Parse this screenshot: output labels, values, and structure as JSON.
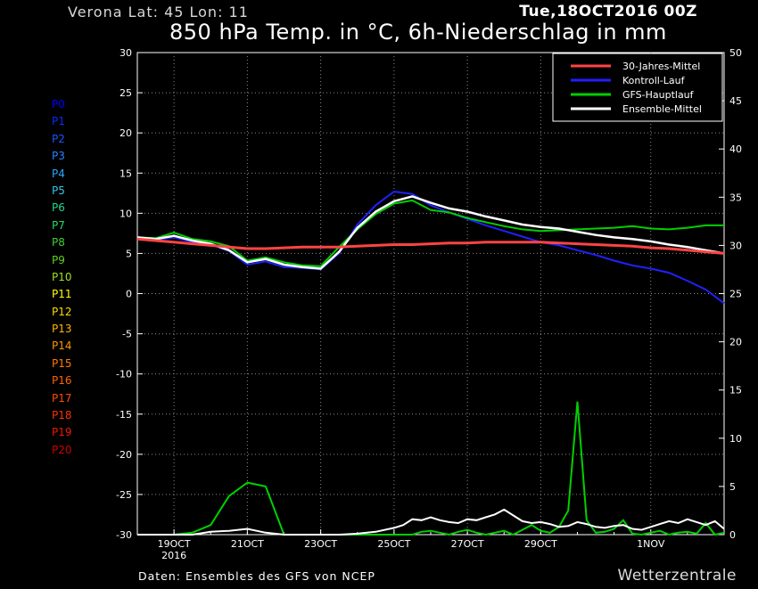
{
  "header": {
    "location": "Verona   Lat: 45  Lon: 11",
    "date": "Tue,18OCT2016 00Z",
    "title": "850 hPa Temp. in °C, 6h-Niederschlag in mm"
  },
  "footer": {
    "credit": "Daten: Ensembles des GFS von NCEP",
    "brand": "Wetterzentrale"
  },
  "colors": {
    "background": "#000000",
    "climate": "#ff4444",
    "control": "#2020ff",
    "gfs": "#00d000",
    "ensemble_mean": "#ffffff",
    "members": [
      "#0000ff",
      "#0a2aff",
      "#1a55ff",
      "#2a80ff",
      "#2aa8ff",
      "#33c8e8",
      "#20d890",
      "#2ad860",
      "#40d030",
      "#60d020",
      "#a0e020",
      "#ffff00",
      "#ffd800",
      "#ffb400",
      "#ff9400",
      "#ff7a00",
      "#ff6200",
      "#ff4c00",
      "#ff3000",
      "#ee1800",
      "#cc0000"
    ]
  },
  "members": [
    "P0",
    "P1",
    "P2",
    "P3",
    "P4",
    "P5",
    "P6",
    "P7",
    "P8",
    "P9",
    "P10",
    "P11",
    "P12",
    "P13",
    "P14",
    "P15",
    "P16",
    "P17",
    "P18",
    "P19",
    "P20"
  ],
  "chart_data": {
    "type": "line",
    "x_axis": {
      "ticks": [
        {
          "label": "19OCT",
          "sub": "2016",
          "day": 19
        },
        {
          "label": "21OCT",
          "sub": "",
          "day": 21
        },
        {
          "label": "23OCT",
          "sub": "",
          "day": 23
        },
        {
          "label": "25OCT",
          "sub": "",
          "day": 25
        },
        {
          "label": "27OCT",
          "sub": "",
          "day": 27
        },
        {
          "label": "29OCT",
          "sub": "",
          "day": 29
        },
        {
          "label": "1NOV",
          "sub": "",
          "day": 32
        }
      ],
      "range_days": [
        18,
        34
      ]
    },
    "y_left": {
      "label": "850 hPa Temp. (°C)",
      "range": [
        -30,
        30
      ],
      "ticks": [
        30,
        25,
        20,
        15,
        10,
        5,
        0,
        -5,
        -10,
        -15,
        -20,
        -25,
        -30
      ]
    },
    "y_right": {
      "label": "6h-Niederschlag (mm)",
      "range": [
        0,
        50
      ],
      "ticks": [
        50,
        45,
        40,
        35,
        30,
        25,
        20,
        15,
        10,
        5,
        0
      ]
    },
    "grid": true,
    "legend": {
      "placement": "top-right",
      "entries": [
        {
          "name": "30-Jahres-Mittel",
          "color": "#ff4444"
        },
        {
          "name": "Kontroll-Lauf",
          "color": "#2020ff"
        },
        {
          "name": "GFS-Hauptlauf",
          "color": "#00d000"
        },
        {
          "name": "Ensemble-Mittel",
          "color": "#ffffff"
        }
      ]
    },
    "temperature": {
      "day": [
        18,
        18.5,
        19,
        19.5,
        20,
        20.5,
        21,
        21.5,
        22,
        22.5,
        23,
        23.5,
        24,
        24.5,
        25,
        25.5,
        26,
        26.5,
        27,
        27.5,
        28,
        28.5,
        29,
        29.5,
        30,
        30.5,
        31,
        31.5,
        32,
        32.5,
        33,
        33.5,
        34
      ],
      "climate": [
        6.8,
        6.6,
        6.4,
        6.2,
        6.0,
        5.8,
        5.6,
        5.6,
        5.7,
        5.8,
        5.8,
        5.8,
        5.9,
        6.0,
        6.1,
        6.1,
        6.2,
        6.3,
        6.3,
        6.4,
        6.4,
        6.4,
        6.4,
        6.3,
        6.2,
        6.1,
        6.0,
        5.9,
        5.7,
        5.6,
        5.4,
        5.2,
        5.0
      ],
      "ensemble_mean": [
        7.0,
        6.8,
        7.2,
        6.6,
        6.2,
        5.4,
        3.9,
        4.3,
        3.6,
        3.3,
        3.1,
        5.2,
        8.2,
        10.2,
        11.5,
        12.1,
        11.3,
        10.6,
        10.2,
        9.6,
        9.1,
        8.6,
        8.3,
        8.1,
        7.7,
        7.3,
        7.0,
        6.8,
        6.5,
        6.1,
        5.8,
        5.4,
        5.0
      ],
      "control": [
        7.0,
        6.7,
        7.0,
        6.4,
        6.1,
        5.3,
        3.6,
        4.0,
        3.3,
        3.2,
        3.0,
        5.0,
        8.6,
        11.0,
        12.7,
        12.4,
        11.0,
        10.1,
        9.3,
        8.5,
        7.8,
        7.1,
        6.4,
        6.0,
        5.4,
        4.8,
        4.1,
        3.5,
        3.1,
        2.6,
        1.6,
        0.5,
        -1.2
      ],
      "gfs": [
        7.0,
        6.9,
        7.6,
        6.8,
        6.5,
        5.9,
        4.1,
        4.5,
        3.9,
        3.5,
        3.4,
        5.8,
        8.0,
        9.9,
        11.2,
        11.6,
        10.4,
        10.1,
        9.4,
        8.9,
        8.4,
        8.0,
        7.8,
        7.9,
        8.0,
        8.1,
        8.2,
        8.4,
        8.1,
        8.0,
        8.2,
        8.5,
        8.5
      ]
    },
    "precipitation_mm": {
      "day": [
        18,
        19,
        19.5,
        20,
        20.5,
        21,
        21.5,
        22,
        23,
        23.5,
        24,
        24.5,
        25,
        25.25,
        25.5,
        25.75,
        26,
        26.25,
        26.5,
        26.75,
        27,
        27.25,
        27.5,
        27.75,
        28,
        28.25,
        28.5,
        28.75,
        29,
        29.25,
        29.5,
        29.75,
        30,
        30.25,
        30.5,
        30.75,
        31,
        31.25,
        31.5,
        31.75,
        32,
        32.25,
        32.5,
        32.75,
        33,
        33.25,
        33.5,
        33.75,
        34
      ],
      "gfs": [
        0,
        0,
        0.2,
        1.0,
        4.0,
        5.4,
        5.0,
        0,
        0,
        0,
        0,
        0,
        0,
        0,
        0,
        0.3,
        0.4,
        0.2,
        0,
        0.3,
        0.5,
        0.2,
        0,
        0.2,
        0.4,
        0,
        0.5,
        1.0,
        0.4,
        0.2,
        0.8,
        2.5,
        13.8,
        1.5,
        0.2,
        0.3,
        0.6,
        1.5,
        0.1,
        0,
        0.2,
        0.4,
        0,
        0.2,
        0.3,
        0.1,
        1.2,
        0,
        0.2
      ],
      "ensemble_mean": [
        0,
        0,
        0,
        0.3,
        0.4,
        0.6,
        0.2,
        0,
        0,
        0,
        0.1,
        0.3,
        0.7,
        1.0,
        1.6,
        1.5,
        1.8,
        1.5,
        1.3,
        1.2,
        1.6,
        1.5,
        1.8,
        2.1,
        2.6,
        2.0,
        1.4,
        1.2,
        1.3,
        1.1,
        0.8,
        0.9,
        1.3,
        1.1,
        0.8,
        0.7,
        0.9,
        1.0,
        0.6,
        0.5,
        0.8,
        1.1,
        1.4,
        1.2,
        1.6,
        1.3,
        1.0,
        1.4,
        0.6
      ]
    }
  }
}
